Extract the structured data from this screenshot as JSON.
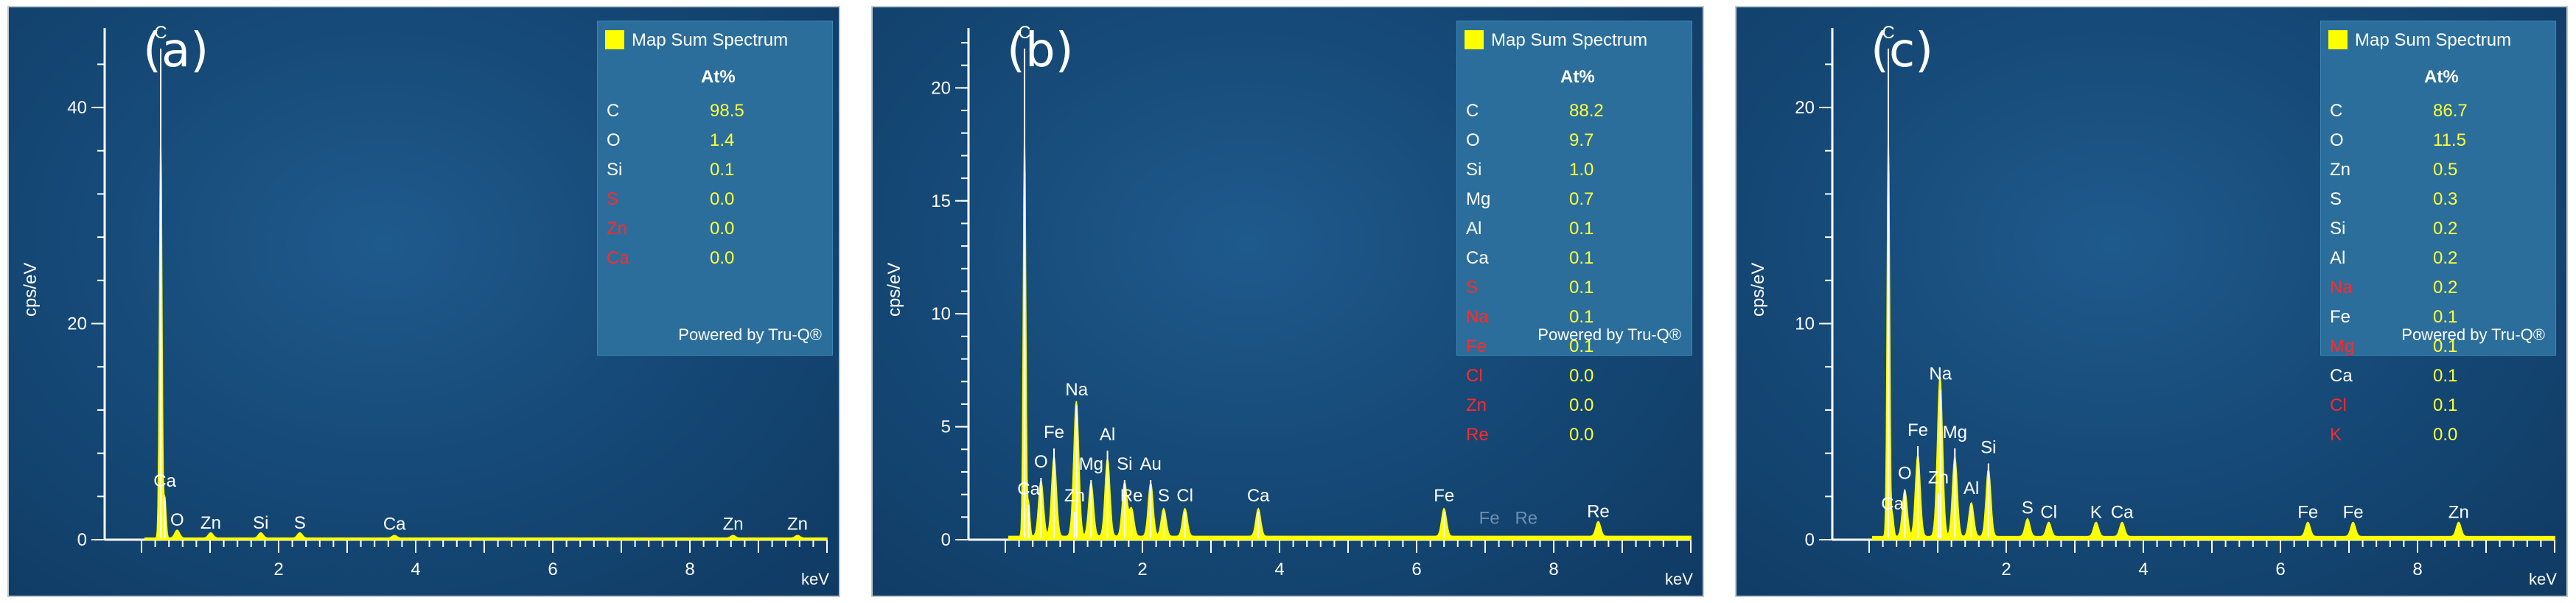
{
  "legend_title": "Map Sum Spectrum",
  "at_header": "At%",
  "powered_by": "Powered by Tru-Q®",
  "y_axis_title": "cps/eV",
  "x_axis_unit": "keV",
  "colors": {
    "spectrum": "#ffff00",
    "value_text": "#ffff3a",
    "unquantified_element": "#ff2a2a"
  },
  "chart_data": [
    {
      "type": "area",
      "panel_label": "(a)",
      "ylabel": "cps/eV",
      "xlabel": "keV",
      "xlim": [
        0,
        10
      ],
      "ylim": [
        0,
        46
      ],
      "x_ticks": [
        2,
        4,
        6,
        8
      ],
      "y_ticks": [
        0,
        20,
        40
      ],
      "peaks": [
        {
          "x": 0.28,
          "y": 46,
          "label": "C"
        },
        {
          "x": 0.34,
          "y": 4.5,
          "label": "Ca"
        },
        {
          "x": 0.52,
          "y": 0.9,
          "label": "O"
        },
        {
          "x": 1.01,
          "y": 0.6,
          "label": "Zn"
        },
        {
          "x": 1.74,
          "y": 0.6,
          "label": "Si"
        },
        {
          "x": 2.31,
          "y": 0.6,
          "label": "S"
        },
        {
          "x": 3.69,
          "y": 0.3,
          "label": "Ca"
        },
        {
          "x": 8.63,
          "y": 0.3,
          "label": "Zn"
        },
        {
          "x": 9.57,
          "y": 0.3,
          "label": "Zn"
        }
      ],
      "composition": [
        {
          "element": "C",
          "at": "98.5",
          "quantified": true
        },
        {
          "element": "O",
          "at": "1.4",
          "quantified": true
        },
        {
          "element": "Si",
          "at": "0.1",
          "quantified": true
        },
        {
          "element": "S",
          "at": "0.0",
          "quantified": false
        },
        {
          "element": "Zn",
          "at": "0.0",
          "quantified": false
        },
        {
          "element": "Ca",
          "at": "0.0",
          "quantified": false
        }
      ]
    },
    {
      "type": "area",
      "panel_label": "(b)",
      "ylabel": "cps/eV",
      "xlabel": "keV",
      "xlim": [
        0,
        10
      ],
      "ylim": [
        0,
        22
      ],
      "x_ticks": [
        2,
        4,
        6,
        8
      ],
      "y_ticks": [
        0,
        5,
        10,
        15,
        20
      ],
      "peaks": [
        {
          "x": 0.28,
          "y": 22,
          "label": "C"
        },
        {
          "x": 0.34,
          "y": 1.8,
          "label": "Ca"
        },
        {
          "x": 0.52,
          "y": 3.0,
          "label": "O"
        },
        {
          "x": 0.71,
          "y": 4.3,
          "label": "Fe"
        },
        {
          "x": 1.01,
          "y": 1.5,
          "label": "Zn"
        },
        {
          "x": 1.04,
          "y": 6.2,
          "label": "Na"
        },
        {
          "x": 1.25,
          "y": 2.9,
          "label": "Mg"
        },
        {
          "x": 1.49,
          "y": 4.2,
          "label": "Al"
        },
        {
          "x": 1.74,
          "y": 2.9,
          "label": "Si"
        },
        {
          "x": 1.84,
          "y": 1.5,
          "label": "Re"
        },
        {
          "x": 2.12,
          "y": 2.9,
          "label": "Au"
        },
        {
          "x": 2.31,
          "y": 1.5,
          "label": "S"
        },
        {
          "x": 2.62,
          "y": 1.5,
          "label": "Cl"
        },
        {
          "x": 3.69,
          "y": 1.5,
          "label": "Ca"
        },
        {
          "x": 6.4,
          "y": 1.5,
          "label": "Fe"
        },
        {
          "x": 7.06,
          "y": -0.3,
          "label": "Fe"
        },
        {
          "x": 7.6,
          "y": -0.3,
          "label": "Re"
        },
        {
          "x": 8.65,
          "y": 0.8,
          "label": "Re"
        }
      ],
      "composition": [
        {
          "element": "C",
          "at": "88.2",
          "quantified": true
        },
        {
          "element": "O",
          "at": "9.7",
          "quantified": true
        },
        {
          "element": "Si",
          "at": "1.0",
          "quantified": true
        },
        {
          "element": "Mg",
          "at": "0.7",
          "quantified": true
        },
        {
          "element": "Al",
          "at": "0.1",
          "quantified": true
        },
        {
          "element": "Ca",
          "at": "0.1",
          "quantified": true
        },
        {
          "element": "S",
          "at": "0.1",
          "quantified": false
        },
        {
          "element": "Na",
          "at": "0.1",
          "quantified": false
        },
        {
          "element": "Fe",
          "at": "0.1",
          "quantified": false
        },
        {
          "element": "Cl",
          "at": "0.0",
          "quantified": false
        },
        {
          "element": "Zn",
          "at": "0.0",
          "quantified": false
        },
        {
          "element": "Re",
          "at": "0.0",
          "quantified": false
        }
      ]
    },
    {
      "type": "area",
      "panel_label": "(c)",
      "ylabel": "cps/eV",
      "xlabel": "keV",
      "xlim": [
        0,
        10
      ],
      "ylim": [
        0,
        23
      ],
      "x_ticks": [
        2,
        4,
        6,
        8
      ],
      "y_ticks": [
        0,
        10,
        20
      ],
      "peaks": [
        {
          "x": 0.28,
          "y": 23,
          "label": "C"
        },
        {
          "x": 0.34,
          "y": 1.2,
          "label": "Ca"
        },
        {
          "x": 0.52,
          "y": 2.6,
          "label": "O"
        },
        {
          "x": 0.71,
          "y": 4.6,
          "label": "Fe"
        },
        {
          "x": 1.01,
          "y": 2.4,
          "label": "Zn"
        },
        {
          "x": 1.04,
          "y": 7.2,
          "label": "Na"
        },
        {
          "x": 1.25,
          "y": 4.5,
          "label": "Mg"
        },
        {
          "x": 1.49,
          "y": 1.9,
          "label": "Al"
        },
        {
          "x": 1.74,
          "y": 3.8,
          "label": "Si"
        },
        {
          "x": 2.31,
          "y": 1.0,
          "label": "S"
        },
        {
          "x": 2.62,
          "y": 0.8,
          "label": "Cl"
        },
        {
          "x": 3.31,
          "y": 0.8,
          "label": "K"
        },
        {
          "x": 3.69,
          "y": 0.8,
          "label": "Ca"
        },
        {
          "x": 6.4,
          "y": 0.8,
          "label": "Fe"
        },
        {
          "x": 7.06,
          "y": 0.8,
          "label": "Fe"
        },
        {
          "x": 8.6,
          "y": 0.8,
          "label": "Zn"
        }
      ],
      "composition": [
        {
          "element": "C",
          "at": "86.7",
          "quantified": true
        },
        {
          "element": "O",
          "at": "11.5",
          "quantified": true
        },
        {
          "element": "Zn",
          "at": "0.5",
          "quantified": true
        },
        {
          "element": "S",
          "at": "0.3",
          "quantified": true
        },
        {
          "element": "Si",
          "at": "0.2",
          "quantified": true
        },
        {
          "element": "Al",
          "at": "0.2",
          "quantified": true
        },
        {
          "element": "Na",
          "at": "0.2",
          "quantified": false
        },
        {
          "element": "Fe",
          "at": "0.1",
          "quantified": true
        },
        {
          "element": "Mg",
          "at": "0.1",
          "quantified": false
        },
        {
          "element": "Ca",
          "at": "0.1",
          "quantified": true
        },
        {
          "element": "Cl",
          "at": "0.1",
          "quantified": false
        },
        {
          "element": "K",
          "at": "0.0",
          "quantified": false
        }
      ]
    }
  ]
}
